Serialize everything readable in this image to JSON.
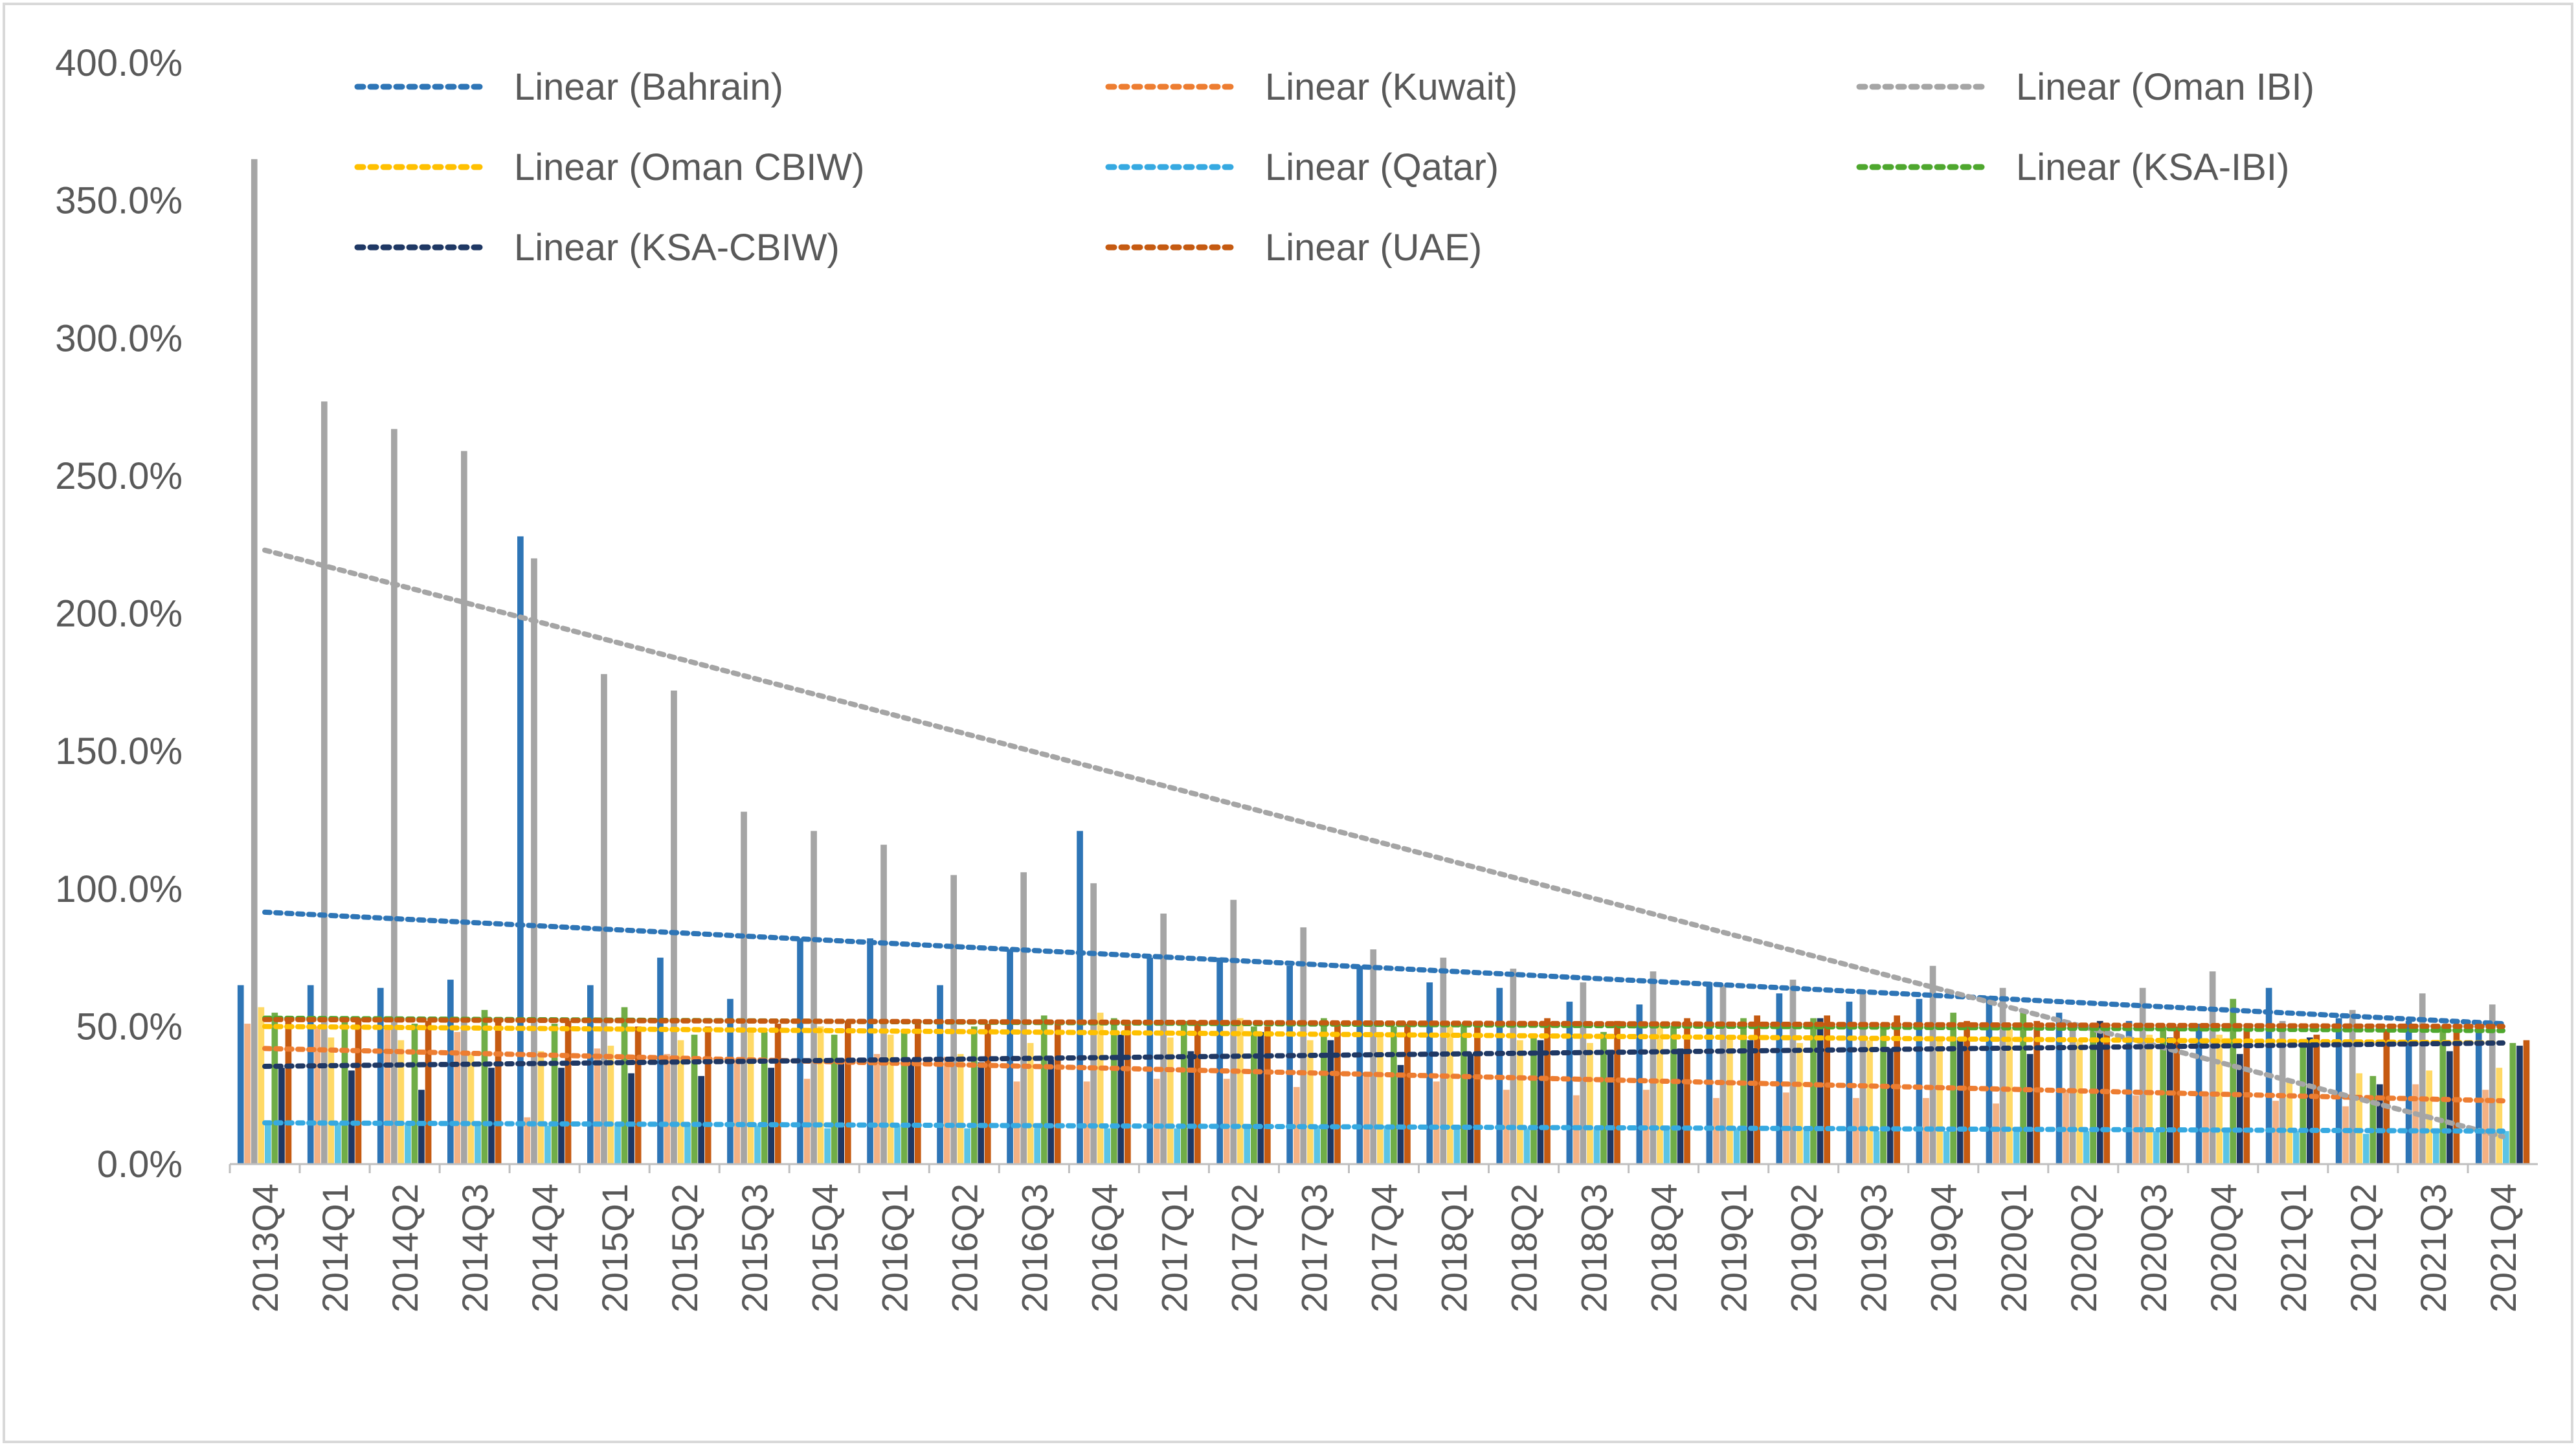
{
  "chart_data": {
    "type": "bar",
    "title": "",
    "xlabel": "",
    "ylabel": "",
    "ylim": [
      0,
      4.0
    ],
    "y_ticks": [
      "0.0%",
      "50.0%",
      "100.0%",
      "150.0%",
      "200.0%",
      "250.0%",
      "300.0%",
      "350.0%",
      "400.0%"
    ],
    "grid": false,
    "legend_position": "top",
    "categories": [
      "2013Q4",
      "2014Q1",
      "2014Q2",
      "2014Q3",
      "2014Q4",
      "2015Q1",
      "2015Q2",
      "2015Q3",
      "2015Q4",
      "2016Q1",
      "2016Q2",
      "2016Q3",
      "2016Q4",
      "2017Q1",
      "2017Q2",
      "2017Q3",
      "2017Q4",
      "2018Q1",
      "2018Q2",
      "2018Q3",
      "2018Q4",
      "2019Q1",
      "2019Q2",
      "2019Q3",
      "2019Q4",
      "2020Q1",
      "2020Q2",
      "2020Q3",
      "2020Q4",
      "2021Q1",
      "2021Q2",
      "2021Q3",
      "2021Q4"
    ],
    "series": [
      {
        "color": "#2E75B6",
        "values": [
          0.65,
          0.65,
          0.64,
          0.67,
          2.28,
          0.65,
          0.75,
          0.6,
          0.82,
          0.82,
          0.65,
          0.78,
          1.21,
          0.75,
          0.75,
          0.72,
          0.72,
          0.66,
          0.64,
          0.59,
          0.58,
          0.66,
          0.62,
          0.59,
          0.6,
          0.61,
          0.55,
          0.52,
          0.51,
          0.64,
          0.53,
          0.52,
          0.5
        ]
      },
      {
        "color": "#F4B183",
        "values": [
          0.51,
          0.5,
          0.49,
          0.48,
          0.17,
          0.42,
          0.4,
          0.38,
          0.31,
          0.4,
          0.39,
          0.3,
          0.3,
          0.31,
          0.31,
          0.28,
          0.32,
          0.3,
          0.27,
          0.25,
          0.27,
          0.24,
          0.26,
          0.24,
          0.24,
          0.22,
          0.27,
          0.25,
          0.25,
          0.23,
          0.21,
          0.29,
          0.27
        ]
      },
      {
        "color": "#A5A5A5",
        "values": [
          3.65,
          2.77,
          2.67,
          2.59,
          2.2,
          1.78,
          1.72,
          1.28,
          1.21,
          1.16,
          1.05,
          1.06,
          1.02,
          0.91,
          0.96,
          0.86,
          0.78,
          0.75,
          0.71,
          0.66,
          0.7,
          0.65,
          0.67,
          0.63,
          0.72,
          0.64,
          0.51,
          0.64,
          0.7,
          0.52,
          0.56,
          0.62,
          0.58
        ]
      },
      {
        "color": "#FFD966",
        "values": [
          0.57,
          0.46,
          0.45,
          0.4,
          0.41,
          0.43,
          0.45,
          0.49,
          0.5,
          0.47,
          0.4,
          0.44,
          0.55,
          0.46,
          0.53,
          0.45,
          0.48,
          0.5,
          0.45,
          0.44,
          0.51,
          0.46,
          0.44,
          0.45,
          0.45,
          0.49,
          0.45,
          0.47,
          0.47,
          0.3,
          0.33,
          0.34,
          0.35
        ]
      },
      {
        "color": "#5BC4E5",
        "values": [
          0.15,
          0.15,
          0.15,
          0.15,
          0.14,
          0.14,
          0.14,
          0.14,
          0.13,
          0.14,
          0.13,
          0.13,
          0.13,
          0.13,
          0.14,
          0.14,
          0.14,
          0.14,
          0.13,
          0.13,
          0.14,
          0.13,
          0.13,
          0.12,
          0.12,
          0.12,
          0.12,
          0.12,
          0.12,
          0.12,
          0.11,
          0.12,
          0.12
        ]
      },
      {
        "color": "#70AD47",
        "values": [
          0.55,
          0.53,
          0.51,
          0.56,
          0.51,
          0.57,
          0.47,
          0.48,
          0.47,
          0.49,
          0.5,
          0.54,
          0.53,
          0.52,
          0.5,
          0.53,
          0.5,
          0.51,
          0.46,
          0.48,
          0.5,
          0.53,
          0.53,
          0.51,
          0.55,
          0.55,
          0.5,
          0.5,
          0.6,
          0.45,
          0.32,
          0.5,
          0.44
        ]
      },
      {
        "color": "#1F3864",
        "values": [
          0.35,
          0.34,
          0.27,
          0.35,
          0.35,
          0.33,
          0.32,
          0.35,
          0.38,
          0.38,
          0.37,
          0.38,
          0.47,
          0.41,
          0.48,
          0.45,
          0.36,
          0.4,
          0.45,
          0.4,
          0.42,
          0.45,
          0.53,
          0.42,
          0.46,
          0.4,
          0.52,
          0.46,
          0.4,
          0.46,
          0.29,
          0.41,
          0.43
        ]
      },
      {
        "color": "#C55A11",
        "values": [
          0.53,
          0.53,
          0.52,
          0.52,
          0.52,
          0.5,
          0.5,
          0.51,
          0.52,
          0.51,
          0.51,
          0.52,
          0.51,
          0.52,
          0.5,
          0.51,
          0.51,
          0.51,
          0.53,
          0.52,
          0.53,
          0.54,
          0.54,
          0.54,
          0.52,
          0.52,
          0.51,
          0.5,
          0.5,
          0.47,
          0.49,
          0.48,
          0.45
        ]
      }
    ],
    "trendlines": [
      {
        "name": "Linear (Bahrain)",
        "color": "#2E75B6",
        "start": 0.915,
        "end": 0.51
      },
      {
        "name": "Linear (Kuwait)",
        "color": "#ED7D31",
        "start": 0.42,
        "end": 0.23
      },
      {
        "name": "Linear (Oman IBI)",
        "color": "#A5A5A5",
        "start": 2.23,
        "end": 0.1
      },
      {
        "name": "Linear (Oman CBIW)",
        "color": "#FFC000",
        "start": 0.5,
        "end": 0.44
      },
      {
        "name": "Linear (Qatar)",
        "color": "#36A9E1",
        "start": 0.15,
        "end": 0.12
      },
      {
        "name": "Linear (KSA-IBI)",
        "color": "#4EA72E",
        "start": 0.53,
        "end": 0.485
      },
      {
        "name": "Linear (KSA-CBIW)",
        "color": "#1F3864",
        "start": 0.355,
        "end": 0.44
      },
      {
        "name": "Linear (UAE)",
        "color": "#C55A11",
        "start": 0.525,
        "end": 0.5
      }
    ]
  }
}
